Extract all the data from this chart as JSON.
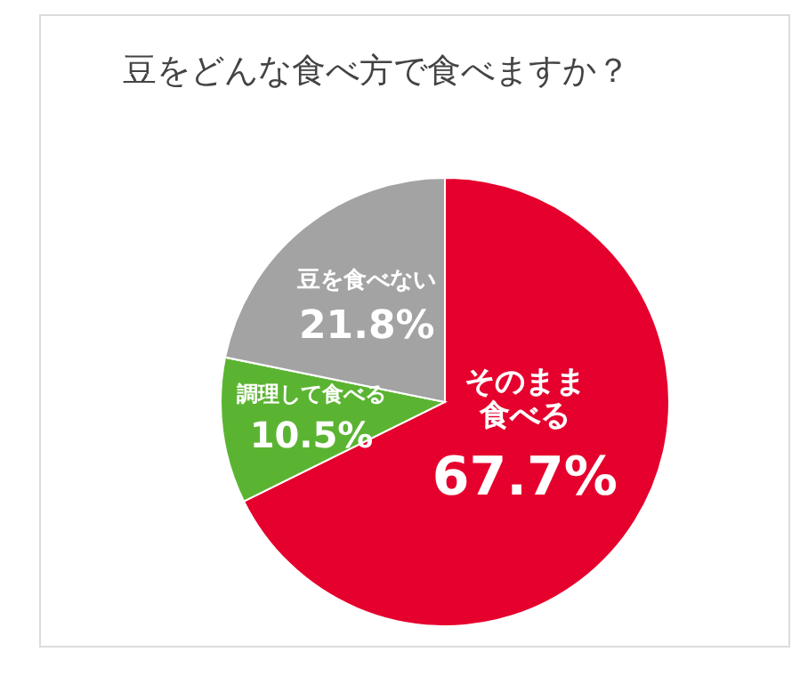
{
  "chart_data": {
    "type": "pie",
    "title": "豆をどんな食べ方で食べますか？",
    "categories": [
      "そのまま食べる",
      "調理して食べる",
      "豆を食べない"
    ],
    "values": [
      67.7,
      10.5,
      21.8
    ],
    "colors": [
      "#e5002d",
      "#5bb431",
      "#a3a3a3"
    ],
    "value_labels": [
      "67.7%",
      "10.5%",
      "21.8%"
    ],
    "legend": false
  }
}
